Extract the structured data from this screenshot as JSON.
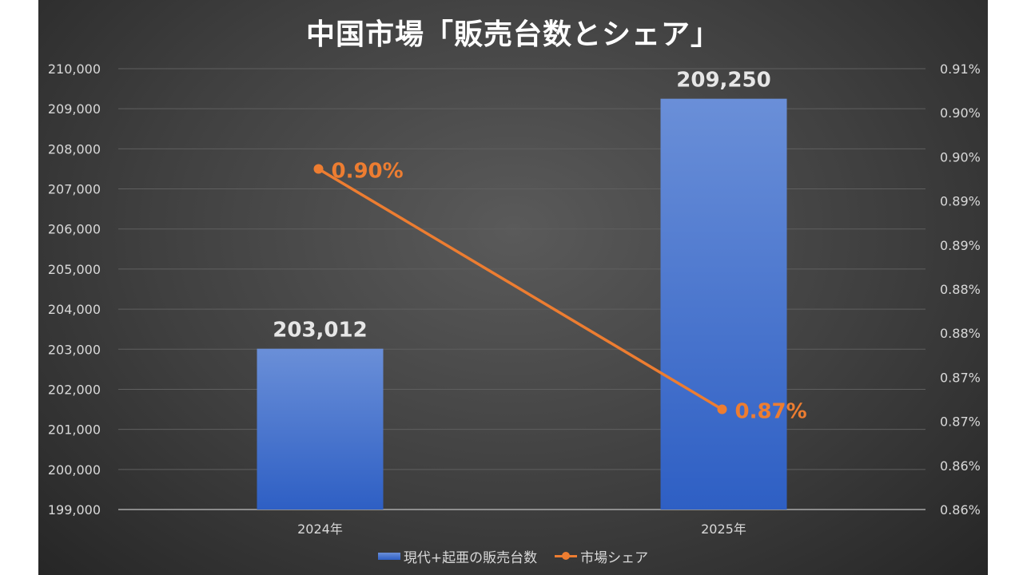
{
  "chart_data": {
    "type": "bar",
    "title": "中国市場「販売台数とシェア」",
    "categories": [
      "2024年",
      "2025年"
    ],
    "series": [
      {
        "name": "現代+起亜の販売台数",
        "type": "bar",
        "axis": "left",
        "values": [
          203012,
          209250
        ],
        "labels": [
          "203,012",
          "209,250"
        ],
        "color": "#4472c4"
      },
      {
        "name": "市場シェア",
        "type": "line",
        "axis": "right",
        "values": [
          0.9,
          0.87
        ],
        "labels": [
          "0.90%",
          "0.87%"
        ],
        "color": "#ed7d31"
      }
    ],
    "y_left": {
      "ylim": [
        199000,
        210000
      ],
      "ticks": [
        "199,000",
        "200,000",
        "201,000",
        "202,000",
        "203,000",
        "204,000",
        "205,000",
        "206,000",
        "207,000",
        "208,000",
        "209,000",
        "210,000"
      ]
    },
    "y_right": {
      "ylim": [
        0.8575,
        0.9125
      ],
      "ticks": [
        "0.86%",
        "0.86%",
        "0.87%",
        "0.87%",
        "0.88%",
        "0.88%",
        "0.89%",
        "0.89%",
        "0.90%",
        "0.90%",
        "0.91%"
      ]
    },
    "grid": true,
    "legend_position": "bottom"
  }
}
